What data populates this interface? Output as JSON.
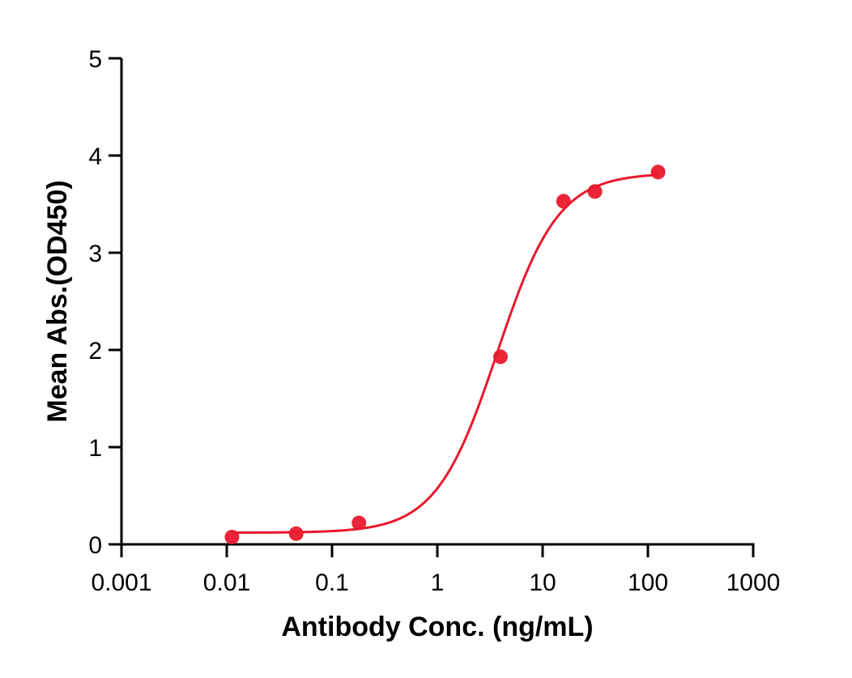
{
  "chart_data": {
    "type": "scatter",
    "title": "",
    "xlabel": "Antibody Conc. (ng/mL)",
    "ylabel": "Mean Abs.(OD450)",
    "xscale": "log",
    "xlim": [
      0.001,
      1000
    ],
    "ylim": [
      0,
      5
    ],
    "x_ticks": [
      "0.001",
      "0.01",
      "0.1",
      "1",
      "10",
      "100",
      "1000"
    ],
    "y_ticks": [
      "0",
      "1",
      "2",
      "3",
      "4",
      "5"
    ],
    "grid": false,
    "legend": null,
    "series": [
      {
        "name": "Mean Abs.",
        "color": "#e8192c",
        "marker": "circle",
        "fit": "4PL sigmoidal curve",
        "x": [
          0.0112,
          0.0456,
          0.18,
          3.98,
          15.8,
          31.4,
          125
        ],
        "y": [
          0.075,
          0.11,
          0.22,
          1.93,
          3.53,
          3.63,
          3.83
        ]
      }
    ],
    "fit_curve": {
      "bottom": 0.12,
      "top": 3.82,
      "ec50": 3.7,
      "hill": 1.5
    }
  },
  "colors": {
    "series": "#e8192c",
    "axis": "#000000"
  }
}
